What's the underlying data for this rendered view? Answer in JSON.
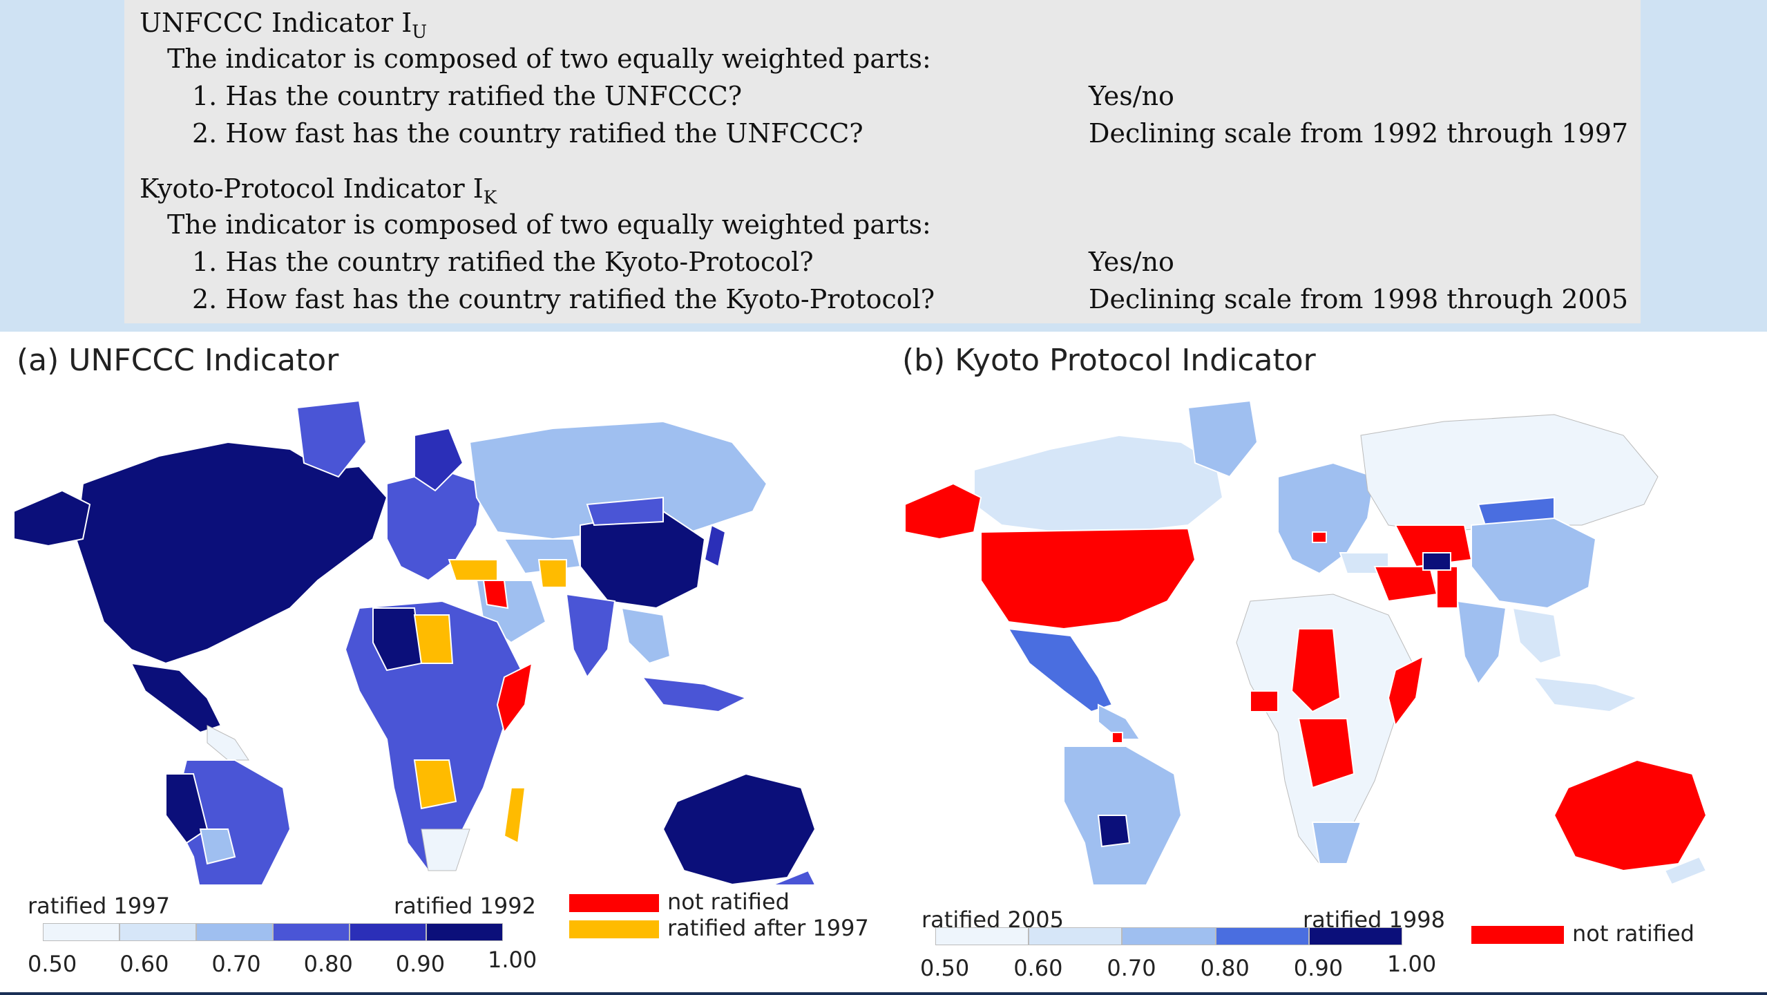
{
  "definitions": {
    "unfccc": {
      "title": "UNFCCC Indicator I",
      "subscript": "U",
      "intro": "The indicator is composed of two equally weighted parts:",
      "items": [
        {
          "question": "1. Has the country ratified the UNFCCC?",
          "answer": "Yes/no"
        },
        {
          "question": "2. How fast has the country ratified the UNFCCC?",
          "answer": "Declining scale from 1992 through 1997"
        }
      ]
    },
    "kyoto": {
      "title": "Kyoto-Protocol Indicator I",
      "subscript": "K",
      "intro": "The indicator is composed of two equally weighted parts:",
      "items": [
        {
          "question": "1. Has the country ratified the Kyoto-Protocol?",
          "answer": "Yes/no"
        },
        {
          "question": "2. How fast has the country ratified the Kyoto-Protocol?",
          "answer": "Declining scale from 1998 through 2005"
        }
      ]
    }
  },
  "panels": {
    "a": {
      "title": "(a) UNFCCC Indicator",
      "legend_left": "ratified 1997",
      "legend_right": "ratified 1992",
      "ticks": [
        "0.50",
        "0.60",
        "0.70",
        "0.80",
        "0.90",
        "1.00"
      ],
      "scale_colors": [
        "#eef5fc",
        "#d6e6f8",
        "#9fbff0",
        "#4a55d6",
        "#2b2fb8",
        "#0b0f7a"
      ],
      "categories": [
        {
          "label": "not ratified",
          "color": "#ff0000"
        },
        {
          "label": "ratified after 1997",
          "color": "#ffbb00"
        }
      ]
    },
    "b": {
      "title": "(b) Kyoto Protocol Indicator",
      "legend_left": "ratified 2005",
      "legend_right": "ratified 1998",
      "ticks": [
        "0.50",
        "0.60",
        "0.70",
        "0.80",
        "0.90",
        "1.00"
      ],
      "scale_colors": [
        "#eef5fc",
        "#d6e6f8",
        "#9fbff0",
        "#4a6ee0",
        "#0b0f7a"
      ],
      "categories": [
        {
          "label": "not ratified",
          "color": "#ff0000"
        }
      ]
    }
  }
}
